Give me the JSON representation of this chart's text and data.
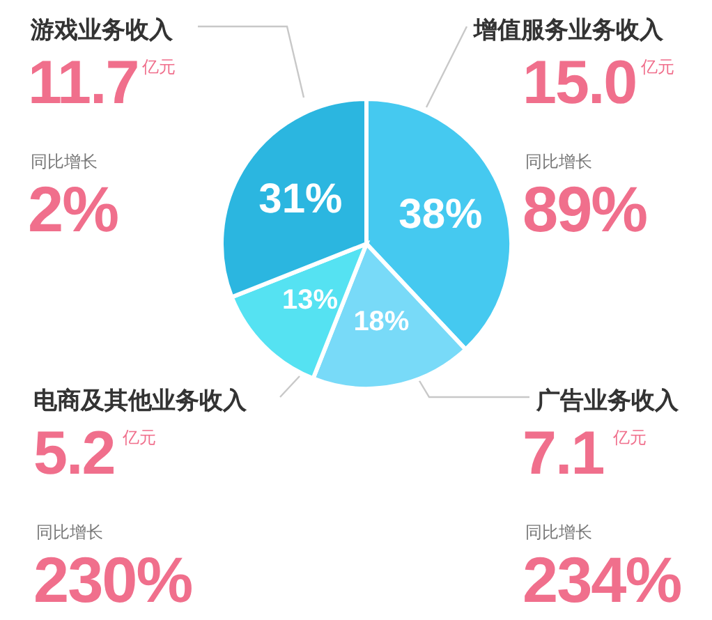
{
  "chart_data": {
    "type": "pie",
    "categories": [
      "增值服务业务收入",
      "广告业务收入",
      "电商及其他业务收入",
      "游戏业务收入"
    ],
    "values": [
      38,
      18,
      13,
      31
    ],
    "colors": [
      "#45c9f0",
      "#78daf8",
      "#55e2f2",
      "#2bb6e0"
    ],
    "value_labels": [
      "38%",
      "18%",
      "13%",
      "31%"
    ],
    "annotations": [
      "15.0",
      "亿元",
      "同比增长",
      "89%",
      "7.1",
      "亿元",
      "同比增长",
      "234%",
      "5.2",
      "亿元",
      "同比增长",
      "230%",
      "11.7",
      "亿元",
      "同比增长",
      "2%"
    ]
  }
}
